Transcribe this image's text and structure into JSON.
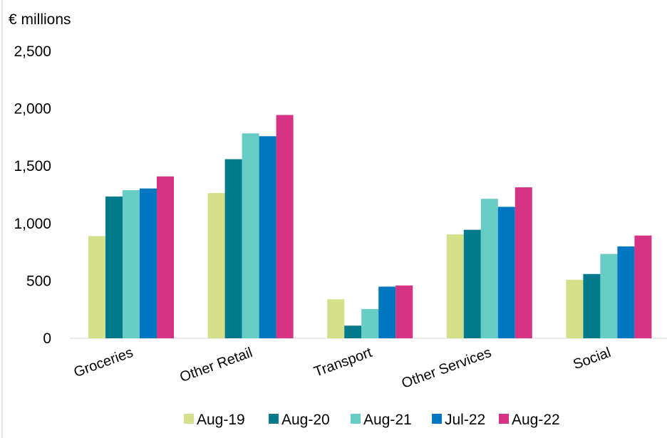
{
  "chart_data": {
    "type": "bar",
    "ylabel": "€ millions",
    "ylim": [
      0,
      2500
    ],
    "yticks": [
      0,
      500,
      1000,
      1500,
      2000,
      2500
    ],
    "ytick_labels": [
      "0",
      "500",
      "1,000",
      "1,500",
      "2,000",
      "2,500"
    ],
    "grid": false,
    "legend_position": "bottom",
    "categories": [
      "Groceries",
      "Other Retail",
      "Transport",
      "Other Services",
      "Social"
    ],
    "series": [
      {
        "name": "Aug-19",
        "color": "#d4e08a",
        "values": [
          890,
          1265,
          340,
          905,
          510
        ]
      },
      {
        "name": "Aug-20",
        "color": "#007a8c",
        "values": [
          1235,
          1560,
          110,
          945,
          560
        ]
      },
      {
        "name": "Aug-21",
        "color": "#66ccc4",
        "values": [
          1290,
          1785,
          255,
          1215,
          735
        ]
      },
      {
        "name": "Jul-22",
        "color": "#0077c0",
        "values": [
          1305,
          1760,
          450,
          1145,
          800
        ]
      },
      {
        "name": "Aug-22",
        "color": "#d63384",
        "values": [
          1410,
          1945,
          460,
          1315,
          895
        ]
      }
    ]
  }
}
